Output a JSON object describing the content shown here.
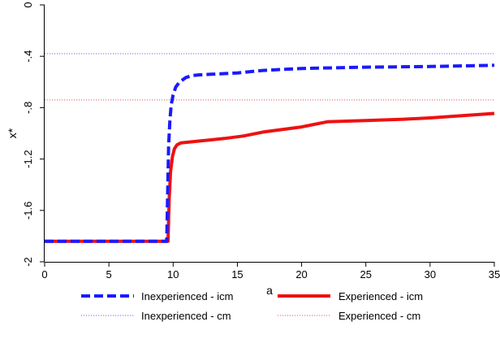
{
  "chart_data": {
    "type": "line",
    "title": "",
    "xlabel": "a",
    "ylabel": "x*",
    "xlim": [
      0,
      35
    ],
    "ylim": [
      -2,
      0
    ],
    "xticks": [
      0,
      5,
      10,
      15,
      20,
      25,
      30,
      35
    ],
    "yticks": [
      0,
      -0.4,
      -0.8,
      -1.2,
      -1.6,
      -2
    ],
    "ytick_labels": [
      "0",
      "-.4",
      "-.8",
      "-1.2",
      "-1.6",
      "-2"
    ],
    "xtick_labels": [
      "0",
      "5",
      "10",
      "15",
      "20",
      "25",
      "30",
      "35"
    ],
    "grid": false,
    "legend_position": "bottom",
    "series": [
      {
        "name": "Inexperienced - icm",
        "style": "dashed",
        "color": "#1a1aff",
        "x": [
          0,
          9.5,
          9.65,
          9.75,
          9.85,
          10,
          10.2,
          10.5,
          11,
          11.5,
          12,
          13,
          15,
          17,
          20,
          25,
          30,
          35
        ],
        "y": [
          -1.84,
          -1.84,
          -1.1,
          -0.9,
          -0.78,
          -0.7,
          -0.64,
          -0.6,
          -0.565,
          -0.55,
          -0.545,
          -0.54,
          -0.53,
          -0.51,
          -0.495,
          -0.485,
          -0.48,
          -0.47
        ]
      },
      {
        "name": "Experienced - icm",
        "style": "solid",
        "color": "#ee1111",
        "x": [
          0,
          9.6,
          9.7,
          9.8,
          9.95,
          10.1,
          10.3,
          10.6,
          11,
          12,
          14,
          15.5,
          17,
          20,
          22,
          25,
          28,
          30,
          35
        ],
        "y": [
          -1.84,
          -1.84,
          -1.5,
          -1.3,
          -1.18,
          -1.12,
          -1.09,
          -1.075,
          -1.07,
          -1.06,
          -1.04,
          -1.02,
          -0.99,
          -0.95,
          -0.91,
          -0.9,
          -0.89,
          -0.88,
          -0.845
        ]
      },
      {
        "name": "Inexperienced - cm",
        "style": "dotted",
        "color": "#6a6aff",
        "x": [
          0,
          35
        ],
        "y": [
          -0.38,
          -0.38
        ]
      },
      {
        "name": "Experienced - cm",
        "style": "dotted",
        "color": "#ee5a5a",
        "x": [
          0,
          35
        ],
        "y": [
          -0.74,
          -0.74
        ]
      }
    ],
    "legend": {
      "items": [
        {
          "label": "Inexperienced - icm",
          "series": 0
        },
        {
          "label": "Experienced - icm",
          "series": 1
        },
        {
          "label": "Inexperienced - cm",
          "series": 2
        },
        {
          "label": "Experienced - cm",
          "series": 3
        }
      ]
    }
  }
}
